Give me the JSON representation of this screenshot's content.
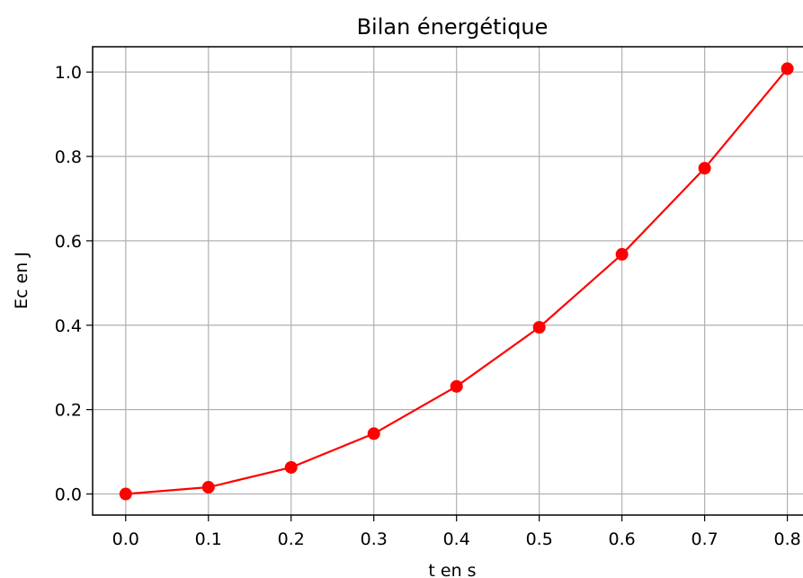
{
  "chart_data": {
    "type": "line",
    "title": "Bilan énergétique",
    "xlabel": "t en s",
    "ylabel": "Ec en J",
    "xlim": [
      -0.04,
      0.82
    ],
    "ylim": [
      -0.05,
      1.06
    ],
    "x_ticks": [
      0.0,
      0.1,
      0.2,
      0.3,
      0.4,
      0.5,
      0.6,
      0.7,
      0.8
    ],
    "x_tick_labels": [
      "0.0",
      "0.1",
      "0.2",
      "0.3",
      "0.4",
      "0.5",
      "0.6",
      "0.7",
      "0.8"
    ],
    "y_ticks": [
      0.0,
      0.2,
      0.4,
      0.6,
      0.8,
      1.0
    ],
    "y_tick_labels": [
      "0.0",
      "0.2",
      "0.4",
      "0.6",
      "0.8",
      "1.0"
    ],
    "grid": true,
    "series": [
      {
        "color": "#ff0000",
        "marker": "circle",
        "x": [
          0.0,
          0.1,
          0.2,
          0.3,
          0.4,
          0.5,
          0.6,
          0.7,
          0.8
        ],
        "y": [
          0.0,
          0.016,
          0.063,
          0.143,
          0.255,
          0.395,
          0.568,
          0.772,
          1.008
        ]
      }
    ]
  }
}
